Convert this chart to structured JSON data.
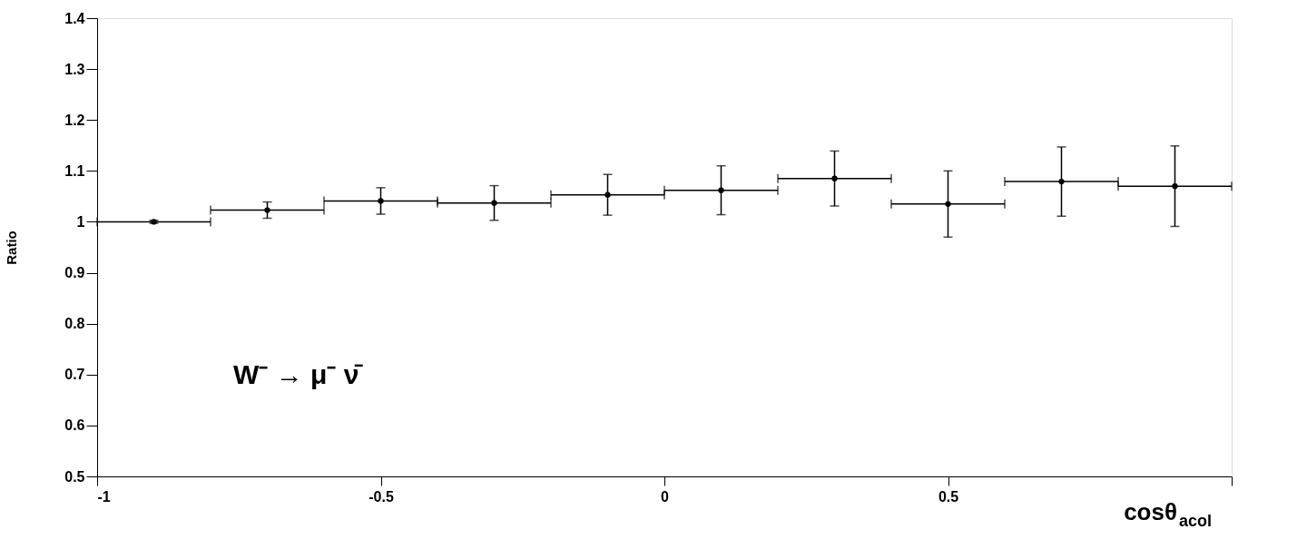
{
  "chart_data": {
    "type": "scatter",
    "x": [
      -0.9,
      -0.7,
      -0.5,
      -0.3,
      -0.1,
      0.1,
      0.3,
      0.5,
      0.7,
      0.9
    ],
    "series": [
      {
        "color": "#000000",
        "values": [
          1.0,
          1.023,
          1.041,
          1.037,
          1.053,
          1.062,
          1.085,
          1.035,
          1.079,
          1.07
        ],
        "errors": [
          0.003,
          0.016,
          0.026,
          0.034,
          0.04,
          0.048,
          0.054,
          0.065,
          0.068,
          0.079
        ],
        "xerrors": [
          0.1,
          0.1,
          0.1,
          0.1,
          0.1,
          0.1,
          0.1,
          0.1,
          0.1,
          0.1
        ]
      }
    ],
    "xlim": [
      -1,
      1
    ],
    "xticks": [
      -1,
      -0.5,
      0,
      0.5,
      {
        "value": 1,
        "label": null
      }
    ],
    "ylim": [
      0.5,
      1.4
    ],
    "yticks": [
      0.5,
      0.6,
      0.7,
      0.8,
      0.9,
      1,
      1.1,
      1.2,
      1.3,
      1.4
    ],
    "xlabel": "cosθ$_{acol}$",
    "ylabel": "Ratio",
    "marker": "circle",
    "grid": false,
    "annotations": [
      "W⁻ → μ⁻ ν̄"
    ]
  }
}
